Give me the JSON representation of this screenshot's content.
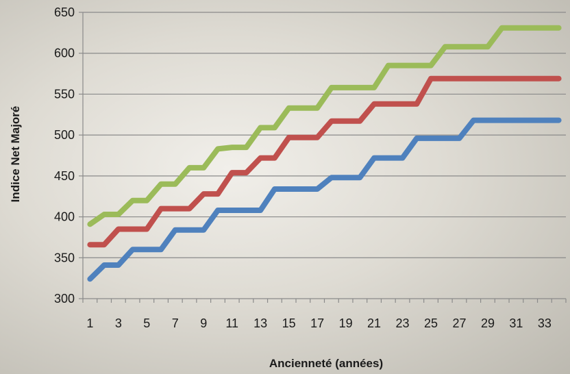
{
  "chart_data": {
    "type": "line",
    "title": "",
    "xlabel": "Ancienneté (années)",
    "ylabel": "Indice Net Majoré",
    "ylim": [
      300,
      650
    ],
    "yticks": [
      300,
      350,
      400,
      450,
      500,
      550,
      600,
      650
    ],
    "xlim": [
      1,
      34
    ],
    "xtick_labels": [
      1,
      3,
      5,
      7,
      9,
      11,
      13,
      15,
      17,
      19,
      21,
      23,
      25,
      27,
      29,
      31,
      33
    ],
    "grid": "horizontal",
    "legend": "none",
    "x": [
      1,
      2,
      3,
      4,
      5,
      6,
      7,
      8,
      9,
      10,
      11,
      12,
      13,
      14,
      15,
      16,
      17,
      18,
      19,
      20,
      21,
      22,
      23,
      24,
      25,
      26,
      27,
      28,
      29,
      30,
      31,
      32,
      33,
      34
    ],
    "series": [
      {
        "color": "#9bbb59",
        "values": [
          391,
          403,
          403,
          420,
          420,
          440,
          440,
          460,
          460,
          483,
          485,
          485,
          509,
          509,
          533,
          533,
          533,
          558,
          558,
          558,
          558,
          585,
          585,
          585,
          585,
          608,
          608,
          608,
          608,
          631,
          631,
          631,
          631,
          631
        ]
      },
      {
        "color": "#c0504d",
        "values": [
          366,
          366,
          385,
          385,
          385,
          410,
          410,
          410,
          428,
          428,
          454,
          454,
          472,
          472,
          497,
          497,
          497,
          517,
          517,
          517,
          538,
          538,
          538,
          538,
          569,
          569,
          569,
          569,
          569,
          569,
          569,
          569,
          569,
          569
        ]
      },
      {
        "color": "#4f81bd",
        "values": [
          324,
          341,
          341,
          360,
          360,
          360,
          384,
          384,
          384,
          408,
          408,
          408,
          408,
          434,
          434,
          434,
          434,
          448,
          448,
          448,
          472,
          472,
          472,
          496,
          496,
          496,
          496,
          518,
          518,
          518,
          518,
          518,
          518,
          518
        ]
      }
    ]
  }
}
